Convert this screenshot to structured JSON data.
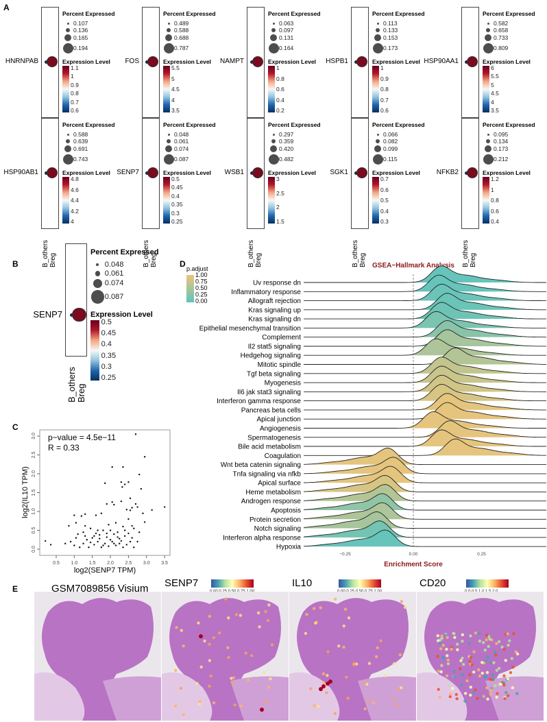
{
  "panels": {
    "A": "A",
    "B": "B",
    "C": "C",
    "D": "D",
    "E": "E"
  },
  "dotplot": {
    "percent_title": "Percent Expressed",
    "expr_title": "Expression Level",
    "groups": [
      "B_others",
      "Breg"
    ],
    "colors": {
      "low": "#053061",
      "high": "#67001f",
      "size_legend": "#4d4d4d"
    },
    "genes": [
      {
        "name": "HNRNPAB",
        "pct": [
          "0.107",
          "0.136",
          "0.165",
          "0.194"
        ],
        "expr": [
          "1.1",
          "1",
          "0.9",
          "0.8",
          "0.7",
          "0.6"
        ]
      },
      {
        "name": "FOS",
        "pct": [
          "0.489",
          "0.588",
          "0.688",
          "0.787"
        ],
        "expr": [
          "5.5",
          "5",
          "4.5",
          "4",
          "3.5"
        ]
      },
      {
        "name": "NAMPT",
        "pct": [
          "0.063",
          "0.097",
          "0.131",
          "0.164"
        ],
        "expr": [
          "1",
          "0.8",
          "0.6",
          "0.4",
          "0.2"
        ]
      },
      {
        "name": "HSPB1",
        "pct": [
          "0.113",
          "0.133",
          "0.153",
          "0.173"
        ],
        "expr": [
          "1",
          "0.9",
          "0.8",
          "0.7",
          "0.6"
        ]
      },
      {
        "name": "HSP90AA1",
        "pct": [
          "0.582",
          "0.658",
          "0.733",
          "0.809"
        ],
        "expr": [
          "6",
          "5.5",
          "5",
          "4.5",
          "4",
          "3.5"
        ]
      },
      {
        "name": "HSP90AB1",
        "pct": [
          "0.588",
          "0.639",
          "0.691",
          "0.743"
        ],
        "expr": [
          "4.8",
          "4.6",
          "4.4",
          "4.2",
          "4"
        ]
      },
      {
        "name": "SENP7",
        "pct": [
          "0.048",
          "0.061",
          "0.074",
          "0.087"
        ],
        "expr": [
          "0.5",
          "0.45",
          "0.4",
          "0.35",
          "0.3",
          "0.25"
        ]
      },
      {
        "name": "WSB1",
        "pct": [
          "0.297",
          "0.359",
          "0.420",
          "0.482"
        ],
        "expr": [
          "3",
          "2.5",
          "2",
          "1.5"
        ]
      },
      {
        "name": "SGK1",
        "pct": [
          "0.066",
          "0.082",
          "0.099",
          "0.115"
        ],
        "expr": [
          "0.7",
          "0.6",
          "0.5",
          "0.4",
          "0.3"
        ]
      },
      {
        "name": "NFKB2",
        "pct": [
          "0.095",
          "0.134",
          "0.173",
          "0.212"
        ],
        "expr": [
          "1.2",
          "1",
          "0.8",
          "0.6",
          "0.4"
        ]
      }
    ],
    "panel_b": {
      "name": "SENP7",
      "pct": [
        "0.048",
        "0.061",
        "0.074",
        "0.087"
      ],
      "expr": [
        "0.5",
        "0.45",
        "0.4",
        "0.35",
        "0.3",
        "0.25"
      ]
    }
  },
  "chart_data": [
    {
      "type": "scatter",
      "panel": "C",
      "xlabel": "log2(SENP7 TPM)",
      "ylabel": "log2(IL10 TPM)",
      "annotation": [
        "p−value = 4.5e−11",
        "R = 0.33"
      ],
      "xlim": [
        0,
        3.6
      ],
      "ylim": [
        -0.05,
        3.1
      ],
      "xticks": [
        "0.5",
        "1.0",
        "1.5",
        "2.0",
        "2.5",
        "3.0",
        "3.5"
      ],
      "yticks": [
        "0.0",
        "0.5",
        "1.0",
        "1.5",
        "2.0",
        "2.5",
        "3.0"
      ],
      "points": [
        [
          0.2,
          0.22
        ],
        [
          0.35,
          0.12
        ],
        [
          2.7,
          3.05
        ],
        [
          2.95,
          2.45
        ],
        [
          2.05,
          2.18
        ],
        [
          2.35,
          2.18
        ],
        [
          2.8,
          1.98
        ],
        [
          1.85,
          1.75
        ],
        [
          2.3,
          1.78
        ],
        [
          2.4,
          1.72
        ],
        [
          2.5,
          1.78
        ],
        [
          2.33,
          1.65
        ],
        [
          2.85,
          1.6
        ],
        [
          3.5,
          1.12
        ],
        [
          3.15,
          1.04
        ],
        [
          2.55,
          1.35
        ],
        [
          1.9,
          1.2
        ],
        [
          2.05,
          1.25
        ],
        [
          2.3,
          1.27
        ],
        [
          2.1,
          1.18
        ],
        [
          2.7,
          1.2
        ],
        [
          2.75,
          1.12
        ],
        [
          2.6,
          1.1
        ],
        [
          2.45,
          1.05
        ],
        [
          2.55,
          1.03
        ],
        [
          2.9,
          0.95
        ],
        [
          2.95,
          0.72
        ],
        [
          1.0,
          0.9
        ],
        [
          1.3,
          0.93
        ],
        [
          1.6,
          0.9
        ],
        [
          1.75,
          0.95
        ],
        [
          1.2,
          0.88
        ],
        [
          1.05,
          0.7
        ],
        [
          1.3,
          0.62
        ],
        [
          0.85,
          0.62
        ],
        [
          1.45,
          0.55
        ],
        [
          1.65,
          0.5
        ],
        [
          1.95,
          0.65
        ],
        [
          2.15,
          0.7
        ],
        [
          2.35,
          0.6
        ],
        [
          2.5,
          0.8
        ],
        [
          2.65,
          0.55
        ],
        [
          2.8,
          0.45
        ],
        [
          1.1,
          0.4
        ],
        [
          1.3,
          0.35
        ],
        [
          1.5,
          0.3
        ],
        [
          1.7,
          0.38
        ],
        [
          1.9,
          0.32
        ],
        [
          2.1,
          0.4
        ],
        [
          2.25,
          0.28
        ],
        [
          2.4,
          0.35
        ],
        [
          2.6,
          0.3
        ],
        [
          2.75,
          0.2
        ],
        [
          0.9,
          0.2
        ],
        [
          1.0,
          0.1
        ],
        [
          1.15,
          0.05
        ],
        [
          1.25,
          0.15
        ],
        [
          1.4,
          0.05
        ],
        [
          1.55,
          0.12
        ],
        [
          1.65,
          0.2
        ],
        [
          1.75,
          0.05
        ],
        [
          1.85,
          0.15
        ],
        [
          1.95,
          0.08
        ],
        [
          2.05,
          0.2
        ],
        [
          2.15,
          0.1
        ],
        [
          2.25,
          0.15
        ],
        [
          2.35,
          0.05
        ],
        [
          2.45,
          0.12
        ],
        [
          2.55,
          0.2
        ],
        [
          2.65,
          0.05
        ],
        [
          0.75,
          0.15
        ],
        [
          1.35,
          0.25
        ],
        [
          1.6,
          0.42
        ],
        [
          1.8,
          0.5
        ],
        [
          2.0,
          0.5
        ],
        [
          2.2,
          0.45
        ],
        [
          1.45,
          0.18
        ],
        [
          1.7,
          0.28
        ],
        [
          2.0,
          0.25
        ],
        [
          2.3,
          0.22
        ],
        [
          1.55,
          0.35
        ],
        [
          1.9,
          0.42
        ],
        [
          2.1,
          0.15
        ],
        [
          1.25,
          0.45
        ],
        [
          2.4,
          0.5
        ],
        [
          2.6,
          0.62
        ],
        [
          1.05,
          0.3
        ],
        [
          1.8,
          0.1
        ],
        [
          2.2,
          0.32
        ],
        [
          2.5,
          0.42
        ]
      ]
    },
    {
      "type": "ridgeline",
      "panel": "D",
      "title": "GSEA−Hallmark Analysis",
      "xlabel": "Enrichment Score",
      "xlim": [
        -0.5,
        0.45
      ],
      "xticks": [
        "−0.25",
        "0.00",
        "0.25"
      ],
      "xtick_values": [
        -0.25,
        0,
        0.25
      ],
      "legend": {
        "title": "p.adjust",
        "ticks": [
          "1.00",
          "0.75",
          "0.50",
          "0.25",
          "0.00"
        ],
        "colors": {
          "low": "#5fc4bd",
          "high": "#ecc57a"
        },
        "position": "top-left"
      },
      "series": [
        {
          "name": "Uv response dn",
          "peak": 0.1,
          "p_adjust": 0.05
        },
        {
          "name": "Inflammatory response",
          "peak": 0.09,
          "p_adjust": 0.05
        },
        {
          "name": "Allograft rejection",
          "peak": 0.1,
          "p_adjust": 0.08
        },
        {
          "name": "Kras signaling up",
          "peak": 0.12,
          "p_adjust": 0.08
        },
        {
          "name": "Kras signaling dn",
          "peak": 0.1,
          "p_adjust": 0.1
        },
        {
          "name": "Epithelial mesenchymal transition",
          "peak": 0.08,
          "p_adjust": 0.2
        },
        {
          "name": "Complement",
          "peak": 0.12,
          "p_adjust": 0.3
        },
        {
          "name": "Il2 stat5 signaling",
          "peak": 0.12,
          "p_adjust": 0.5
        },
        {
          "name": "Hedgehog signaling",
          "peak": 0.08,
          "p_adjust": 0.55
        },
        {
          "name": "Mitotic spindle",
          "peak": 0.15,
          "p_adjust": 0.6
        },
        {
          "name": "Tgf beta signaling",
          "peak": 0.1,
          "p_adjust": 0.7
        },
        {
          "name": "Myogenesis",
          "peak": 0.1,
          "p_adjust": 0.75
        },
        {
          "name": "Il6 jak stat3 signaling",
          "peak": 0.1,
          "p_adjust": 0.8
        },
        {
          "name": "Interferon gamma response",
          "peak": 0.1,
          "p_adjust": 0.85
        },
        {
          "name": "Pancreas beta cells",
          "peak": 0.12,
          "p_adjust": 0.95
        },
        {
          "name": "Apical junction",
          "peak": 0.12,
          "p_adjust": 0.95
        },
        {
          "name": "Angiogenesis",
          "peak": 0.07,
          "p_adjust": 0.95
        },
        {
          "name": "Spermatogenesis",
          "peak": 0.13,
          "p_adjust": 0.95
        },
        {
          "name": "Bile acid metabolism",
          "peak": 0.1,
          "p_adjust": 0.95
        },
        {
          "name": "Coagulation",
          "peak": 0.15,
          "p_adjust": 0.95
        },
        {
          "name": "Wnt beta catenin signaling",
          "peak": -0.09,
          "p_adjust": 0.95
        },
        {
          "name": "Tnfa signaling via nfkb",
          "peak": -0.07,
          "p_adjust": 0.95
        },
        {
          "name": "Apical surface",
          "peak": -0.08,
          "p_adjust": 0.95
        },
        {
          "name": "Heme metabolism",
          "peak": -0.1,
          "p_adjust": 0.85
        },
        {
          "name": "Androgen response",
          "peak": -0.1,
          "p_adjust": 0.6
        },
        {
          "name": "Apoptosis",
          "peak": -0.11,
          "p_adjust": 0.35
        },
        {
          "name": "Protein secretion",
          "peak": -0.11,
          "p_adjust": 0.55
        },
        {
          "name": "Notch signaling",
          "peak": -0.13,
          "p_adjust": 0.5
        },
        {
          "name": "Interferon alpha response",
          "peak": -0.12,
          "p_adjust": 0.15
        },
        {
          "name": "Hypoxia",
          "peak": -0.1,
          "p_adjust": 0.05
        }
      ]
    }
  ],
  "spatial": {
    "panels": [
      {
        "title": "GSM7089856 Visium",
        "scale": []
      },
      {
        "title": "SENP7",
        "scale": [
          "0.00",
          "0.25",
          "0.50",
          "0.75",
          "1.00"
        ]
      },
      {
        "title": "IL10",
        "scale": [
          "0.00",
          "0.25",
          "0.50",
          "0.75",
          "1.00"
        ]
      },
      {
        "title": "CD20",
        "scale": [
          "0.0",
          "0.5",
          "1.0",
          "1.5",
          "2.0"
        ]
      }
    ]
  }
}
